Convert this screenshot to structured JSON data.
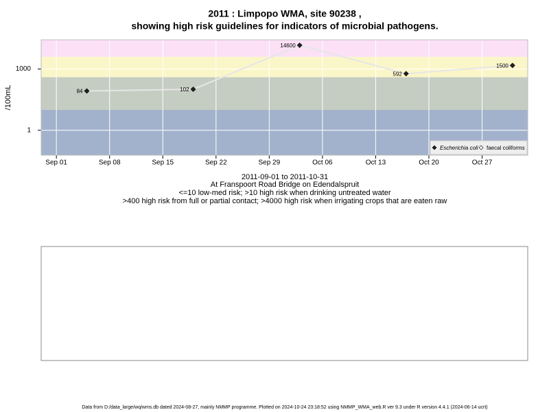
{
  "chart_data": {
    "type": "line",
    "title": "2011 : Limpopo WMA, site 90238 ,",
    "title2": "showing high risk guidelines for indicators of microbial pathogens.",
    "subtitle": [
      "2011-09-01 to 2011-10-31",
      "At Franspoort Road Bridge on Edendalspruit",
      "<=10 low-med risk; >10 high risk when drinking untreated water",
      ">400 high risk from full or partial contact; >4000 high risk when irrigating crops that are eaten raw"
    ],
    "ylabel": "/100mL",
    "footer": "Data from D:/data_large/wq/wms.db dated 2024-08-27, mainly NMMP programme. Plotted on 2024-10-24 23:18:52 using NMMP_WMA_web.R ver 9.3 under R version 4.4.1 (2024-06-14 ucrt)",
    "log_y": true,
    "grid": true,
    "legend": "bottom-right",
    "x": [
      "2011-09-05",
      "2011-09-19",
      "2011-10-03",
      "2011-10-17",
      "2011-10-31"
    ],
    "series": [
      {
        "name": "Escherichia coli",
        "color": "#222222",
        "line_color": "#e6e6e6",
        "values": [
          84,
          102,
          14600,
          592,
          1500
        ]
      },
      {
        "name": "faecal coliforms",
        "color": "#ffffff",
        "values": [
          null,
          null,
          null,
          null,
          null
        ]
      }
    ],
    "bands": [
      {
        "from": 0.06,
        "to": 10,
        "color": "#a2b2cc"
      },
      {
        "from": 10,
        "to": 400,
        "color": "#c5cdc2"
      },
      {
        "from": 400,
        "to": 4000,
        "color": "#fbf6c8"
      },
      {
        "from": 4000,
        "to": 27000,
        "color": "#fbe0f6"
      }
    ],
    "xlim": [
      "2011-08-30",
      "2011-11-02"
    ],
    "xticks": [
      {
        "value": "2011-09-01",
        "label": "Sep 01"
      },
      {
        "value": "2011-09-08",
        "label": "Sep 08"
      },
      {
        "value": "2011-09-15",
        "label": "Sep 15"
      },
      {
        "value": "2011-09-22",
        "label": "Sep 22"
      },
      {
        "value": "2011-09-29",
        "label": "Sep 29"
      },
      {
        "value": "2011-10-06",
        "label": "Oct 06"
      },
      {
        "value": "2011-10-13",
        "label": "Oct 13"
      },
      {
        "value": "2011-10-20",
        "label": "Oct 20"
      },
      {
        "value": "2011-10-27",
        "label": "Oct 27"
      }
    ],
    "ylim": [
      0.06,
      27000
    ],
    "yticks": [
      1,
      1000
    ]
  }
}
